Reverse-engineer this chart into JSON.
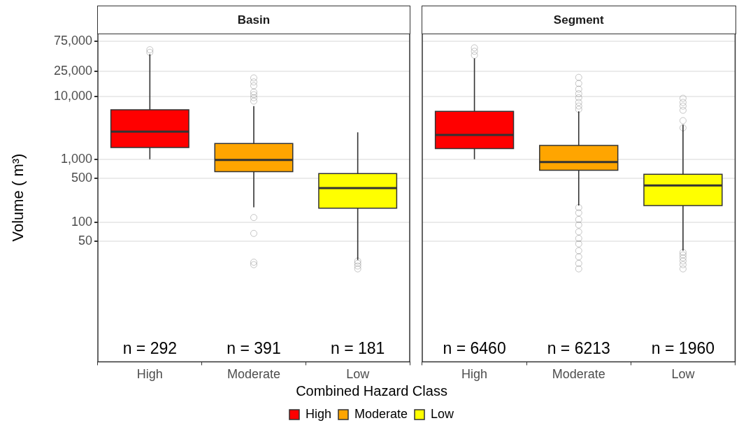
{
  "chart_data": [
    {
      "type": "box",
      "title": "Basin",
      "ylabel": "Volume ( m³)",
      "legend_title": "Combined Hazard Class",
      "legend": "bottom",
      "grid": "y",
      "log": "y",
      "marker": "circle",
      "categories": [
        "High",
        "Moderate",
        "Low"
      ],
      "ylim": [
        0.6,
        100000
      ],
      "yticks": [
        50,
        100,
        500,
        {
          "value": 1000,
          "label": "1,000"
        },
        {
          "value": 10000,
          "label": "10,000"
        },
        {
          "value": 25000,
          "label": "25,000"
        },
        {
          "value": 75000,
          "label": "75,000"
        }
      ],
      "series": [
        {
          "name": "High",
          "color": "#ff0000",
          "boxes": [
            {
              "low": 1000,
              "q1": 1530,
              "median": 2740,
              "q3": 6120,
              "high": 46600,
              "outliers": [
                55000,
                50000
              ]
            },
            null,
            null
          ]
        },
        {
          "name": "Moderate",
          "color": "#ffa500",
          "boxes": [
            null,
            {
              "low": 172,
              "q1": 634,
              "median": 975,
              "q3": 1770,
              "high": 7000,
              "outliers": [
                19600,
                16900,
                14700,
                11700,
                10600,
                9500,
                8400,
                118,
                66,
                23,
                21
              ]
            },
            null
          ]
        },
        {
          "name": "Low",
          "color": "#ffff00",
          "boxes": [
            null,
            null,
            {
              "low": 25,
              "q1": 166,
              "median": 346,
              "q3": 590,
              "high": 2670,
              "outliers": [
                24,
                22,
                20,
                18
              ]
            }
          ]
        }
      ],
      "annotations": [
        "n = 292",
        "n = 391",
        "n = 181"
      ]
    },
    {
      "type": "box",
      "title": "Segment",
      "grid": "y",
      "log": "y",
      "marker": "circle",
      "tick_labels": "x",
      "categories": [
        "High",
        "Moderate",
        "Low"
      ],
      "ylim": [
        0.6,
        100000
      ],
      "yticks": [
        50,
        100,
        500,
        1000,
        10000,
        25000,
        75000
      ],
      "series": [
        {
          "color": "#ff0000",
          "boxes": [
            {
              "low": 1000,
              "q1": 1475,
              "median": 2430,
              "q3": 5770,
              "high": 40000,
              "outliers": [
                59000,
                52000,
                45000
              ]
            },
            null,
            null
          ]
        },
        {
          "color": "#ffa500",
          "boxes": [
            null,
            {
              "low": 183,
              "q1": 667,
              "median": 900,
              "q3": 1650,
              "high": 5770,
              "outliers": [
                20000,
                16000,
                13000,
                11000,
                9500,
                8000,
                7000,
                6200,
                170,
                140,
                110,
                90,
                70,
                55,
                45,
                35,
                28,
                22,
                18
              ]
            },
            null
          ]
        },
        {
          "color": "#ffff00",
          "boxes": [
            null,
            null,
            {
              "low": 35,
              "q1": 183,
              "median": 381,
              "q3": 576,
              "high": 3520,
              "outliers": [
                9300,
                8000,
                7000,
                6000,
                4100,
                3150,
                33,
                30,
                27,
                24,
                21,
                18
              ]
            }
          ]
        }
      ],
      "annotations": [
        "n = 6460",
        "n = 6213",
        "n = 1960"
      ]
    }
  ]
}
